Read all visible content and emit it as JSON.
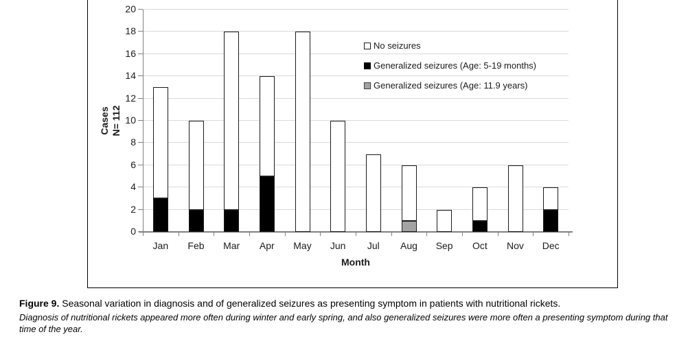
{
  "figure": {
    "caption_label": "Figure 9.",
    "caption_text": "Seasonal variation in diagnosis and of generalized seizures as presenting symptom in patients with nutritional rickets.",
    "caption_note": "Diagnosis of nutritional rickets appeared more often during winter and early spring, and also generalized seizures were more often a presenting symptom during that time of the year."
  },
  "chart_data": {
    "type": "bar",
    "stacked": true,
    "categories": [
      "Jan",
      "Feb",
      "Mar",
      "Apr",
      "May",
      "Jun",
      "Jul",
      "Aug",
      "Sep",
      "Oct",
      "Nov",
      "Dec"
    ],
    "series": [
      {
        "name": "Generalized seizures (Age: 5-19 months)",
        "color": "#000000",
        "values": [
          3,
          2,
          2,
          5,
          0,
          0,
          0,
          0,
          0,
          1,
          0,
          2
        ]
      },
      {
        "name": "Generalized seizures (Age: 11.9 years)",
        "color": "#a3a3a3",
        "values": [
          0,
          0,
          0,
          0,
          0,
          0,
          0,
          1,
          0,
          0,
          0,
          0
        ]
      },
      {
        "name": "No seizures",
        "color": "#ffffff",
        "values": [
          10,
          8,
          16,
          9,
          18,
          10,
          7,
          5,
          2,
          3,
          6,
          2
        ]
      }
    ],
    "totals": [
      13,
      10,
      18,
      14,
      18,
      10,
      7,
      6,
      2,
      4,
      6,
      4
    ],
    "xlabel": "Month",
    "ylabel_lines": [
      "Cases",
      "N= 112"
    ],
    "ylim": [
      0,
      20
    ],
    "ytick_step": 2,
    "grid": true,
    "legend_position": "upper-right-inside",
    "legend": [
      {
        "label": "No seizures",
        "color": "#ffffff"
      },
      {
        "label": "Generalized seizures (Age: 5-19 months)",
        "color": "#000000"
      },
      {
        "label": "Generalized seizures (Age: 11.9 years)",
        "color": "#a3a3a3"
      }
    ],
    "colors": {
      "gridline": "#d9d9d9",
      "axis": "#808080",
      "bar_border": "#1a1a1a"
    }
  }
}
